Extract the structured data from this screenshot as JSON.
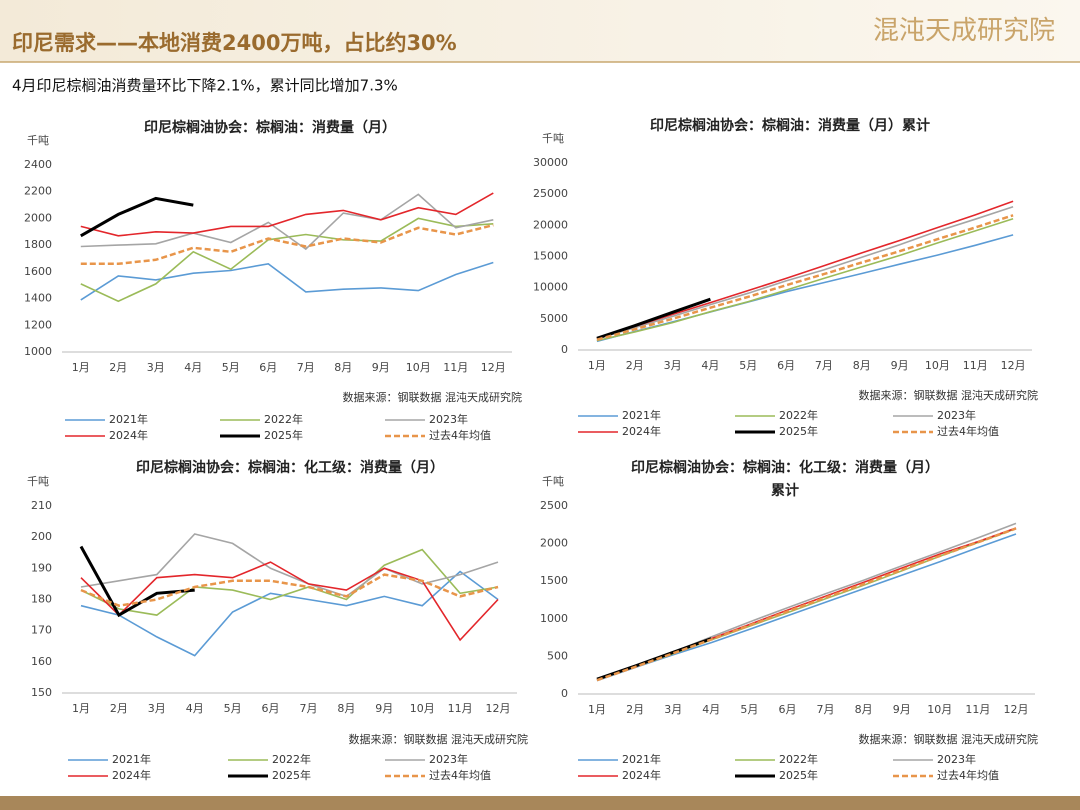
{
  "header": {
    "title": "印尼需求——本地消费2400万吨，占比约30%",
    "logo": "混沌天成研究院",
    "subtitle": "4月印尼棕榈油消费量环比下降2.1%，累计同比增加7.3%"
  },
  "chart_data": [
    {
      "type": "line",
      "title": [
        "印尼棕榈油协会：棕榈油：消费量（月）"
      ],
      "unit": "千吨",
      "source": "数据来源：钢联数据  混沌天成研究院",
      "categories": [
        "1月",
        "2月",
        "3月",
        "4月",
        "5月",
        "6月",
        "7月",
        "8月",
        "9月",
        "10月",
        "11月",
        "12月"
      ],
      "ylim": [
        1000,
        2400
      ],
      "yticks": [
        1000,
        1200,
        1400,
        1600,
        1800,
        2000,
        2200,
        2400
      ],
      "series": [
        {
          "name": "2021年",
          "color": "#5b9bd5",
          "values": [
            1390,
            1570,
            1540,
            1590,
            1610,
            1660,
            1450,
            1470,
            1480,
            1460,
            1580,
            1670
          ]
        },
        {
          "name": "2022年",
          "color": "#9bbb59",
          "values": [
            1510,
            1380,
            1510,
            1750,
            1620,
            1840,
            1880,
            1840,
            1830,
            2000,
            1940,
            1960
          ]
        },
        {
          "name": "2023年",
          "color": "#a5a5a5",
          "values": [
            1790,
            1800,
            1810,
            1890,
            1820,
            1970,
            1770,
            2040,
            1990,
            2180,
            1930,
            1990
          ]
        },
        {
          "name": "2024年",
          "color": "#e3262b",
          "values": [
            1940,
            1870,
            1900,
            1890,
            1940,
            1940,
            2030,
            2060,
            1990,
            2080,
            2030,
            2190
          ]
        },
        {
          "name": "2025年",
          "color": "#000000",
          "values": [
            1870,
            2030,
            2150,
            2100,
            null,
            null,
            null,
            null,
            null,
            null,
            null,
            null
          ]
        },
        {
          "name": "过去4年均值",
          "color": "#e8954a",
          "dashed": true,
          "values": [
            1660,
            1660,
            1690,
            1780,
            1750,
            1850,
            1790,
            1850,
            1820,
            1930,
            1880,
            1950
          ]
        }
      ]
    },
    {
      "type": "line",
      "title": [
        "印尼棕榈油协会：棕榈油：消费量（月）累计"
      ],
      "unit": "千吨",
      "source": "数据来源：钢联数据  混沌天成研究院",
      "categories": [
        "1月",
        "2月",
        "3月",
        "4月",
        "5月",
        "6月",
        "7月",
        "8月",
        "9月",
        "10月",
        "11月",
        "12月"
      ],
      "ylim": [
        0,
        30000
      ],
      "yticks": [
        0,
        5000,
        10000,
        15000,
        20000,
        25000,
        30000
      ],
      "series": [
        {
          "name": "2021年",
          "color": "#5b9bd5",
          "values": [
            1390,
            2960,
            4500,
            6090,
            7700,
            9360,
            10810,
            12280,
            13760,
            15220,
            16800,
            18470
          ]
        },
        {
          "name": "2022年",
          "color": "#9bbb59",
          "values": [
            1510,
            2890,
            4400,
            6150,
            7770,
            9610,
            11490,
            13330,
            15160,
            17160,
            19100,
            21060
          ]
        },
        {
          "name": "2023年",
          "color": "#a5a5a5",
          "values": [
            1790,
            3590,
            5400,
            7290,
            9110,
            11080,
            12850,
            14890,
            16880,
            19060,
            20990,
            22980
          ]
        },
        {
          "name": "2024年",
          "color": "#e3262b",
          "values": [
            1940,
            3810,
            5710,
            7600,
            9540,
            11480,
            13510,
            15570,
            17560,
            19640,
            21670,
            23860
          ]
        },
        {
          "name": "2025年",
          "color": "#000000",
          "values": [
            1870,
            3900,
            6050,
            8150,
            null,
            null,
            null,
            null,
            null,
            null,
            null,
            null
          ]
        },
        {
          "name": "过去4年均值",
          "color": "#e8954a",
          "dashed": true,
          "values": [
            1660,
            3320,
            5010,
            6790,
            8540,
            10390,
            12180,
            14030,
            15850,
            17780,
            19660,
            21610
          ]
        }
      ]
    },
    {
      "type": "line",
      "title": [
        "印尼棕榈油协会：棕榈油：化工级：消费量（月）"
      ],
      "unit": "千吨",
      "source": "数据来源：钢联数据  混沌天成研究院",
      "categories": [
        "1月",
        "2月",
        "3月",
        "4月",
        "5月",
        "6月",
        "7月",
        "8月",
        "9月",
        "10月",
        "11月",
        "12月"
      ],
      "ylim": [
        150,
        210
      ],
      "yticks": [
        150,
        160,
        170,
        180,
        190,
        200,
        210
      ],
      "series": [
        {
          "name": "2021年",
          "color": "#5b9bd5",
          "values": [
            178,
            175,
            168,
            162,
            176,
            182,
            180,
            178,
            181,
            178,
            189,
            180
          ]
        },
        {
          "name": "2022年",
          "color": "#9bbb59",
          "values": [
            183,
            177,
            175,
            184,
            183,
            180,
            184,
            180,
            191,
            196,
            182,
            184
          ]
        },
        {
          "name": "2023年",
          "color": "#a5a5a5",
          "values": [
            184,
            186,
            188,
            201,
            198,
            190,
            185,
            181,
            190,
            185,
            188,
            192
          ]
        },
        {
          "name": "2024年",
          "color": "#e3262b",
          "values": [
            187,
            175,
            187,
            188,
            187,
            192,
            185,
            183,
            190,
            186,
            167,
            180
          ]
        },
        {
          "name": "2025年",
          "color": "#000000",
          "values": [
            197,
            175,
            182,
            183,
            null,
            null,
            null,
            null,
            null,
            null,
            null,
            null
          ]
        },
        {
          "name": "过去4年均值",
          "color": "#e8954a",
          "dashed": true,
          "values": [
            183,
            178,
            180,
            184,
            186,
            186,
            184,
            181,
            188,
            186,
            181,
            184
          ]
        }
      ]
    },
    {
      "type": "line",
      "title": [
        "印尼棕榈油协会：棕榈油：化工级：消费量（月）",
        "累计"
      ],
      "unit": "千吨",
      "source": "数据来源：钢联数据  混沌天成研究院",
      "categories": [
        "1月",
        "2月",
        "3月",
        "4月",
        "5月",
        "6月",
        "7月",
        "8月",
        "9月",
        "10月",
        "11月",
        "12月"
      ],
      "ylim": [
        0,
        2500
      ],
      "yticks": [
        0,
        500,
        1000,
        1500,
        2000,
        2500
      ],
      "series": [
        {
          "name": "2021年",
          "color": "#5b9bd5",
          "values": [
            178,
            353,
            521,
            683,
            859,
            1041,
            1221,
            1399,
            1580,
            1758,
            1947,
            2127
          ]
        },
        {
          "name": "2022年",
          "color": "#9bbb59",
          "values": [
            183,
            360,
            535,
            719,
            902,
            1082,
            1266,
            1446,
            1637,
            1833,
            2015,
            2199
          ]
        },
        {
          "name": "2023年",
          "color": "#a5a5a5",
          "values": [
            184,
            370,
            558,
            759,
            957,
            1147,
            1332,
            1513,
            1703,
            1888,
            2076,
            2268
          ]
        },
        {
          "name": "2024年",
          "color": "#e3262b",
          "values": [
            187,
            362,
            549,
            737,
            924,
            1116,
            1301,
            1484,
            1674,
            1860,
            2027,
            2207
          ]
        },
        {
          "name": "2025年",
          "color": "#000000",
          "values": [
            197,
            372,
            554,
            737,
            null,
            null,
            null,
            null,
            null,
            null,
            null,
            null
          ]
        },
        {
          "name": "过去4年均值",
          "color": "#e8954a",
          "dashed": true,
          "values": [
            183,
            361,
            541,
            725,
            911,
            1097,
            1281,
            1462,
            1650,
            1836,
            2017,
            2201
          ]
        }
      ]
    }
  ]
}
